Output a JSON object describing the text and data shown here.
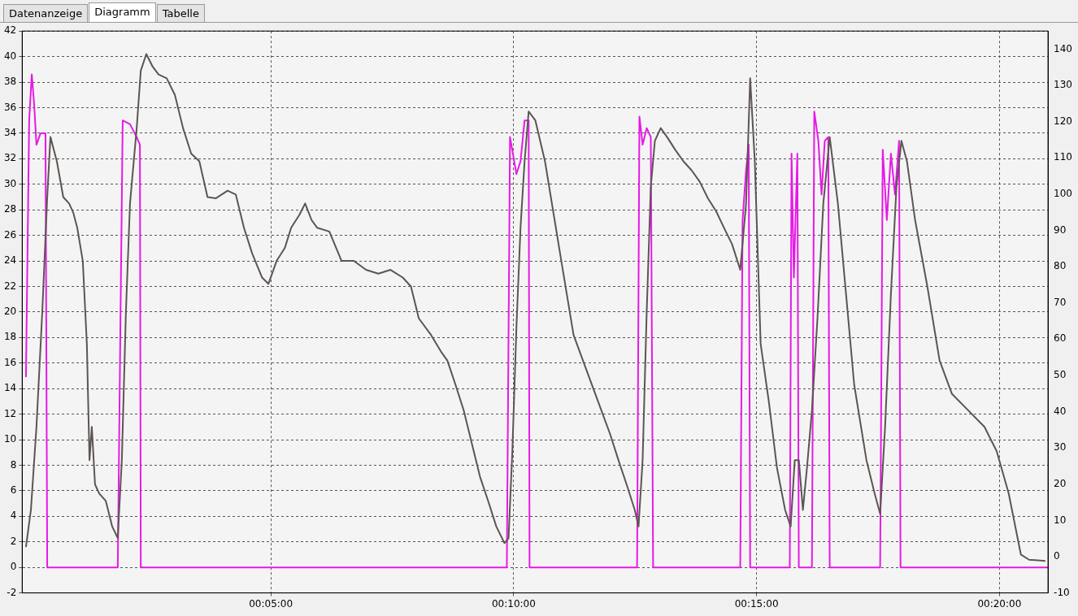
{
  "chart_data": {
    "type": "line",
    "annotations": [
      "Datenanzeige",
      "Diagramm",
      "Tabelle"
    ],
    "xlim": [
      -0.002,
      0.35
    ],
    "xticks": [
      {
        "value": 0.083333,
        "label": "00:05:00"
      },
      {
        "value": 0.166667,
        "label": "00:10:00"
      },
      {
        "value": 0.25,
        "label": "00:15:00"
      },
      {
        "value": 0.333333,
        "label": "00:20:00"
      }
    ],
    "ylim": [
      -2,
      42
    ],
    "yticks": [
      -2,
      0,
      2,
      4,
      6,
      8,
      10,
      12,
      14,
      16,
      18,
      20,
      22,
      24,
      26,
      28,
      30,
      32,
      34,
      36,
      38,
      40,
      42
    ],
    "y2lim": [
      -10,
      145
    ],
    "y2ticks": [
      -10,
      0,
      10,
      20,
      30,
      40,
      50,
      60,
      70,
      80,
      90,
      100,
      110,
      120,
      130,
      140
    ],
    "grid": true,
    "legend": false,
    "marker": "none",
    "line_style": "solid",
    "series": [
      {
        "color": "#5c5552",
        "x": [
          -0.0007,
          0.001,
          0.0029,
          0.0049,
          0.0066,
          0.0077,
          0.0099,
          0.0121,
          0.0141,
          0.0155,
          0.0169,
          0.0188,
          0.0202,
          0.0211,
          0.0219,
          0.023,
          0.0244,
          0.0267,
          0.0289,
          0.0308,
          0.0322,
          0.0336,
          0.035,
          0.0373,
          0.0387,
          0.0406,
          0.0428,
          0.0448,
          0.0476,
          0.0504,
          0.0532,
          0.056,
          0.0588,
          0.0616,
          0.0644,
          0.0685,
          0.0713,
          0.0741,
          0.0769,
          0.0803,
          0.0825,
          0.0853,
          0.0881,
          0.0903,
          0.0931,
          0.0951,
          0.0973,
          0.0992,
          0.1034,
          0.1076,
          0.1118,
          0.116,
          0.1202,
          0.1244,
          0.1286,
          0.1314,
          0.1341,
          0.1383,
          0.1417,
          0.1439,
          0.1467,
          0.1495,
          0.1523,
          0.1551,
          0.1579,
          0.1607,
          0.1635,
          0.1649,
          0.1662,
          0.1676,
          0.169,
          0.1704,
          0.1718,
          0.1741,
          0.1774,
          0.1802,
          0.183,
          0.1872,
          0.1914,
          0.1956,
          0.1998,
          0.2026,
          0.2054,
          0.2082,
          0.2095,
          0.2109,
          0.2123,
          0.2137,
          0.2151,
          0.2171,
          0.2193,
          0.2221,
          0.2249,
          0.2277,
          0.2305,
          0.2333,
          0.2361,
          0.2388,
          0.2416,
          0.2444,
          0.2464,
          0.2478,
          0.2494,
          0.2514,
          0.2542,
          0.257,
          0.2598,
          0.2617,
          0.2631,
          0.2645,
          0.2659,
          0.2673,
          0.269,
          0.2709,
          0.2729,
          0.2751,
          0.2779,
          0.2807,
          0.2835,
          0.2877,
          0.2905,
          0.2924,
          0.2941,
          0.2961,
          0.298,
          0.2997,
          0.3016,
          0.3044,
          0.3086,
          0.3128,
          0.317,
          0.3226,
          0.3282,
          0.3324,
          0.3365,
          0.3393,
          0.3407,
          0.3435,
          0.3491
        ],
        "values": [
          1.6,
          4.5,
          11,
          20,
          29,
          33.7,
          31.8,
          29,
          28.5,
          27.8,
          26.6,
          24,
          17.5,
          8.4,
          11,
          6.5,
          5.8,
          5.2,
          3.2,
          2.3,
          8.4,
          20,
          28.5,
          34.4,
          38.9,
          40.2,
          39.2,
          38.6,
          38.3,
          37,
          34.4,
          32.4,
          31.8,
          29,
          28.9,
          29.5,
          29.2,
          26.6,
          24.6,
          22.7,
          22.2,
          24,
          25,
          26.6,
          27.6,
          28.5,
          27.2,
          26.6,
          26.3,
          24,
          24,
          23.3,
          23,
          23.3,
          22.7,
          22,
          19.5,
          18.2,
          16.9,
          16.2,
          14.3,
          12.3,
          9.7,
          7.1,
          5.2,
          3.2,
          1.9,
          2.3,
          9.1,
          18.8,
          26.6,
          31.8,
          35.7,
          35,
          31.8,
          27.9,
          24,
          18.2,
          15.6,
          13,
          10.4,
          8.4,
          6.5,
          4.5,
          3.2,
          8.4,
          20,
          29.8,
          33.4,
          34.4,
          33.7,
          32.7,
          31.8,
          31.1,
          30.2,
          28.9,
          27.9,
          26.6,
          25.3,
          23.3,
          28.5,
          38.3,
          31.8,
          17.5,
          13,
          7.8,
          4.5,
          3.2,
          8.4,
          8.4,
          4.5,
          7.8,
          12.3,
          19.5,
          28.5,
          33.7,
          28.5,
          21.4,
          14.3,
          8.4,
          5.8,
          4.2,
          11,
          21.4,
          29.8,
          33.4,
          31.8,
          27.2,
          22,
          16.2,
          13.6,
          12.3,
          11,
          9.1,
          5.8,
          2.6,
          1,
          0.6,
          0.5
        ]
      },
      {
        "color": "#e619e6",
        "x": [
          -0.0007,
          0.0004,
          0.0013,
          0.0021,
          0.0029,
          0.0043,
          0.006,
          0.0066,
          0.0308,
          0.0317,
          0.0325,
          0.035,
          0.0373,
          0.0384,
          0.0387,
          0.1643,
          0.1654,
          0.1676,
          0.169,
          0.1704,
          0.1718,
          0.1721,
          0.209,
          0.2098,
          0.2109,
          0.2123,
          0.2137,
          0.2145,
          0.2444,
          0.2452,
          0.2464,
          0.2473,
          0.2478,
          0.2614,
          0.262,
          0.2628,
          0.264,
          0.2645,
          0.269,
          0.2698,
          0.2712,
          0.2723,
          0.2734,
          0.2746,
          0.2751,
          0.2924,
          0.2933,
          0.2947,
          0.2961,
          0.2975,
          0.2989,
          0.2994,
          0.3499
        ],
        "values": [
          14.9,
          35,
          38.6,
          36.3,
          33.1,
          34,
          34,
          0,
          0,
          18.8,
          35,
          34.7,
          33.7,
          33.1,
          0,
          0,
          33.7,
          30.8,
          31.8,
          35,
          35,
          0,
          0,
          35.3,
          33.1,
          34.4,
          33.7,
          0,
          0,
          27.2,
          31.1,
          33.1,
          0,
          0,
          32.4,
          22.7,
          32.4,
          0,
          0,
          35.7,
          33.4,
          29.2,
          33.4,
          33.7,
          0,
          0,
          32.7,
          27.2,
          32.4,
          29.2,
          33.4,
          0,
          0
        ]
      }
    ]
  }
}
